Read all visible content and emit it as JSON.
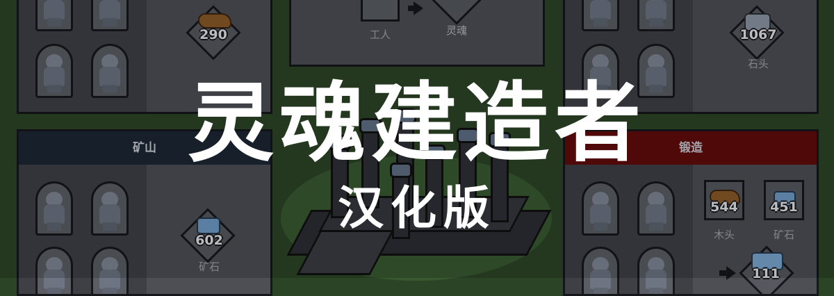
{
  "colors": {
    "background": "#2c4426",
    "panel": "#4d4f55",
    "mine_header": "#1d2634",
    "forge_header": "#620b0b",
    "title_text": "#ffffff"
  },
  "hero": {
    "title": "灵魂建造者",
    "subtitle": "汉化版"
  },
  "center_panel": {
    "input_label": "工人",
    "output_label": "灵魂"
  },
  "top_left_panel": {
    "resource_value": "290",
    "resource_icon": "wood-icon"
  },
  "top_right_panel": {
    "resource_value": "1067",
    "resource_label": "石头",
    "resource_icon": "stone-icon"
  },
  "mine_panel": {
    "header": "矿山",
    "resource_value": "602",
    "resource_label": "矿石",
    "resource_icon": "ore-icon"
  },
  "forge_panel": {
    "header": "锻造",
    "inputs": [
      {
        "value": "544",
        "label": "木头",
        "icon": "wood-icon"
      },
      {
        "value": "451",
        "label": "矿石",
        "icon": "ore-icon"
      }
    ],
    "output_value": "111",
    "output_icon": "ingot-icon"
  }
}
